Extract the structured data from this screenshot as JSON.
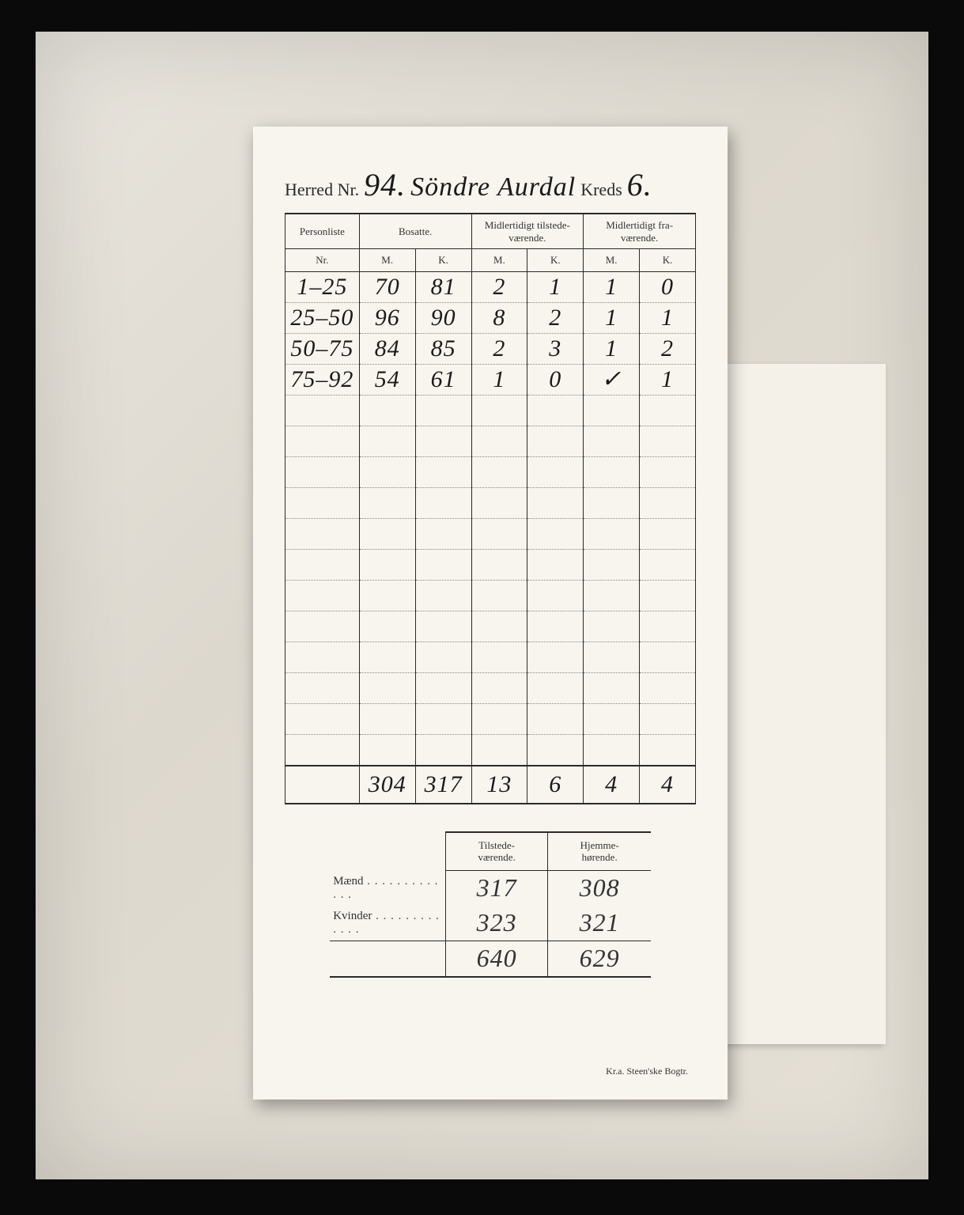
{
  "header": {
    "label_herred": "Herred Nr.",
    "herred_nr": "94.",
    "herred_name": "Söndre Aurdal",
    "label_kreds": "Kreds",
    "kreds_nr": "6."
  },
  "main_table": {
    "head": {
      "personliste": "Personliste",
      "nr": "Nr.",
      "bosatte": "Bosatte.",
      "tilstede": "Midlertidigt tilstede-\nværende.",
      "fravaerende": "Midlertidigt fra-\nværende.",
      "m": "M.",
      "k": "K."
    },
    "rows": [
      {
        "nr": "1–25",
        "bm": "70",
        "bk": "81",
        "tm": "2",
        "tk": "1",
        "fm": "1",
        "fk": "0"
      },
      {
        "nr": "25–50",
        "bm": "96",
        "bk": "90",
        "tm": "8",
        "tk": "2",
        "fm": "1",
        "fk": "1"
      },
      {
        "nr": "50–75",
        "bm": "84",
        "bk": "85",
        "tm": "2",
        "tk": "3",
        "fm": "1",
        "fk": "2"
      },
      {
        "nr": "75–92",
        "bm": "54",
        "bk": "61",
        "tm": "1",
        "tk": "0",
        "fm": "✓",
        "fk": "1"
      }
    ],
    "blank_rows": 12,
    "totals": {
      "nr": "",
      "bm": "304",
      "bk": "317",
      "tm": "13",
      "tk": "6",
      "fm": "4",
      "fk": "4"
    }
  },
  "summary": {
    "head": {
      "blank": "",
      "tilstede": "Tilstede-\nværende.",
      "hjemme": "Hjemme-\nhørende."
    },
    "rows": [
      {
        "label": "Mænd",
        "t": "317",
        "h": "308"
      },
      {
        "label": "Kvinder",
        "t": "323",
        "h": "321"
      }
    ],
    "totals": {
      "label": "",
      "t": "640",
      "h": "629"
    }
  },
  "footer": "Kr.a.  Steen'ske Bogtr.",
  "colors": {
    "page_bg": "#0a0a0a",
    "photo_bg": "#e2ddd3",
    "paper": "#f7f5ee",
    "ink": "#1a1a1a",
    "print": "#2a2a2a"
  }
}
